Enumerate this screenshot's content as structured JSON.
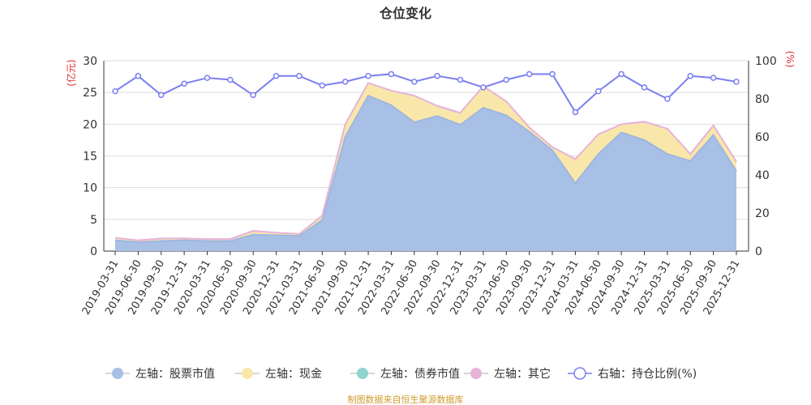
{
  "chart_data": {
    "type": "area",
    "title": "仓位变化",
    "left_axis_unit": "(亿元)",
    "right_axis_unit": "(%)",
    "left_ylim": [
      0,
      30
    ],
    "left_yticks": [
      0,
      5,
      10,
      15,
      20,
      25,
      30
    ],
    "right_ylim": [
      0,
      100
    ],
    "right_yticks": [
      0,
      20,
      40,
      60,
      80,
      100
    ],
    "categories": [
      "2019-03-31",
      "2019-06-30",
      "2019-09-30",
      "2019-12-31",
      "2020-03-31",
      "2020-06-30",
      "2020-09-30",
      "2020-12-31",
      "2021-03-31",
      "2021-06-30",
      "2021-09-30",
      "2021-12-31",
      "2022-03-31",
      "2022-06-30",
      "2022-09-30",
      "2022-12-31",
      "2023-03-31",
      "2023-06-30",
      "2023-09-30",
      "2023-12-31",
      "2024-03-31",
      "2024-06-30",
      "2024-09-30",
      "2024-12-31",
      "2025-03-31",
      "2025-06-30",
      "2025-09-30",
      "2025-12-31"
    ],
    "series": [
      {
        "name": "左轴：股票市值",
        "axis": "left",
        "stack": true,
        "color": "#a8bfe6",
        "line_color": "#9fb6df",
        "values": [
          1.7,
          1.4,
          1.6,
          1.7,
          1.6,
          1.6,
          2.6,
          2.5,
          2.4,
          4.9,
          18.0,
          24.5,
          23.0,
          20.3,
          21.3,
          19.9,
          22.6,
          21.4,
          18.8,
          15.9,
          10.7,
          15.3,
          18.7,
          17.5,
          15.3,
          14.2,
          18.3,
          12.6
        ]
      },
      {
        "name": "左轴：现金",
        "axis": "left",
        "stack": true,
        "color": "#f9e7a9",
        "values": [
          0.3,
          0.2,
          0.3,
          0.2,
          0.2,
          0.2,
          0.4,
          0.3,
          0.2,
          0.5,
          1.9,
          1.9,
          2.2,
          4.1,
          1.4,
          1.7,
          3.3,
          2.1,
          0.6,
          0.4,
          3.7,
          3.0,
          1.2,
          2.7,
          3.9,
          1.0,
          1.3,
          1.4
        ]
      },
      {
        "name": "左轴：债券市值",
        "axis": "left",
        "stack": true,
        "color": "#8ed3ce",
        "values": [
          0,
          0,
          0,
          0,
          0,
          0,
          0,
          0,
          0,
          0,
          0,
          0,
          0,
          0,
          0,
          0,
          0,
          0,
          0,
          0,
          0,
          0,
          0,
          0,
          0,
          0,
          0,
          0
        ]
      },
      {
        "name": "左轴：其它",
        "axis": "left",
        "stack": true,
        "color": "#e8b3da",
        "line_color": "#e6b4d8",
        "values": [
          0.1,
          0.1,
          0.1,
          0.1,
          0.1,
          0.1,
          0.2,
          0.1,
          0.1,
          0.2,
          0.1,
          0.1,
          0.1,
          0.1,
          0.2,
          0.2,
          0.1,
          0.1,
          0.1,
          0.1,
          0.1,
          0.1,
          0.1,
          0.2,
          0.1,
          0.1,
          0.2,
          0.1
        ]
      },
      {
        "name": "右轴：持仓比例(%)",
        "axis": "right",
        "type": "line",
        "color": "#7b7ff0",
        "values": [
          84,
          92,
          82,
          88,
          91,
          90,
          82,
          92,
          92,
          87,
          89,
          92,
          93,
          89,
          92,
          90,
          86,
          90,
          93,
          93,
          73,
          84,
          93,
          86,
          80,
          92,
          91,
          89
        ]
      }
    ],
    "legend_position": "bottom",
    "grid": true
  },
  "footer": {
    "source": "制图数据来自恒生聚源数据库"
  }
}
